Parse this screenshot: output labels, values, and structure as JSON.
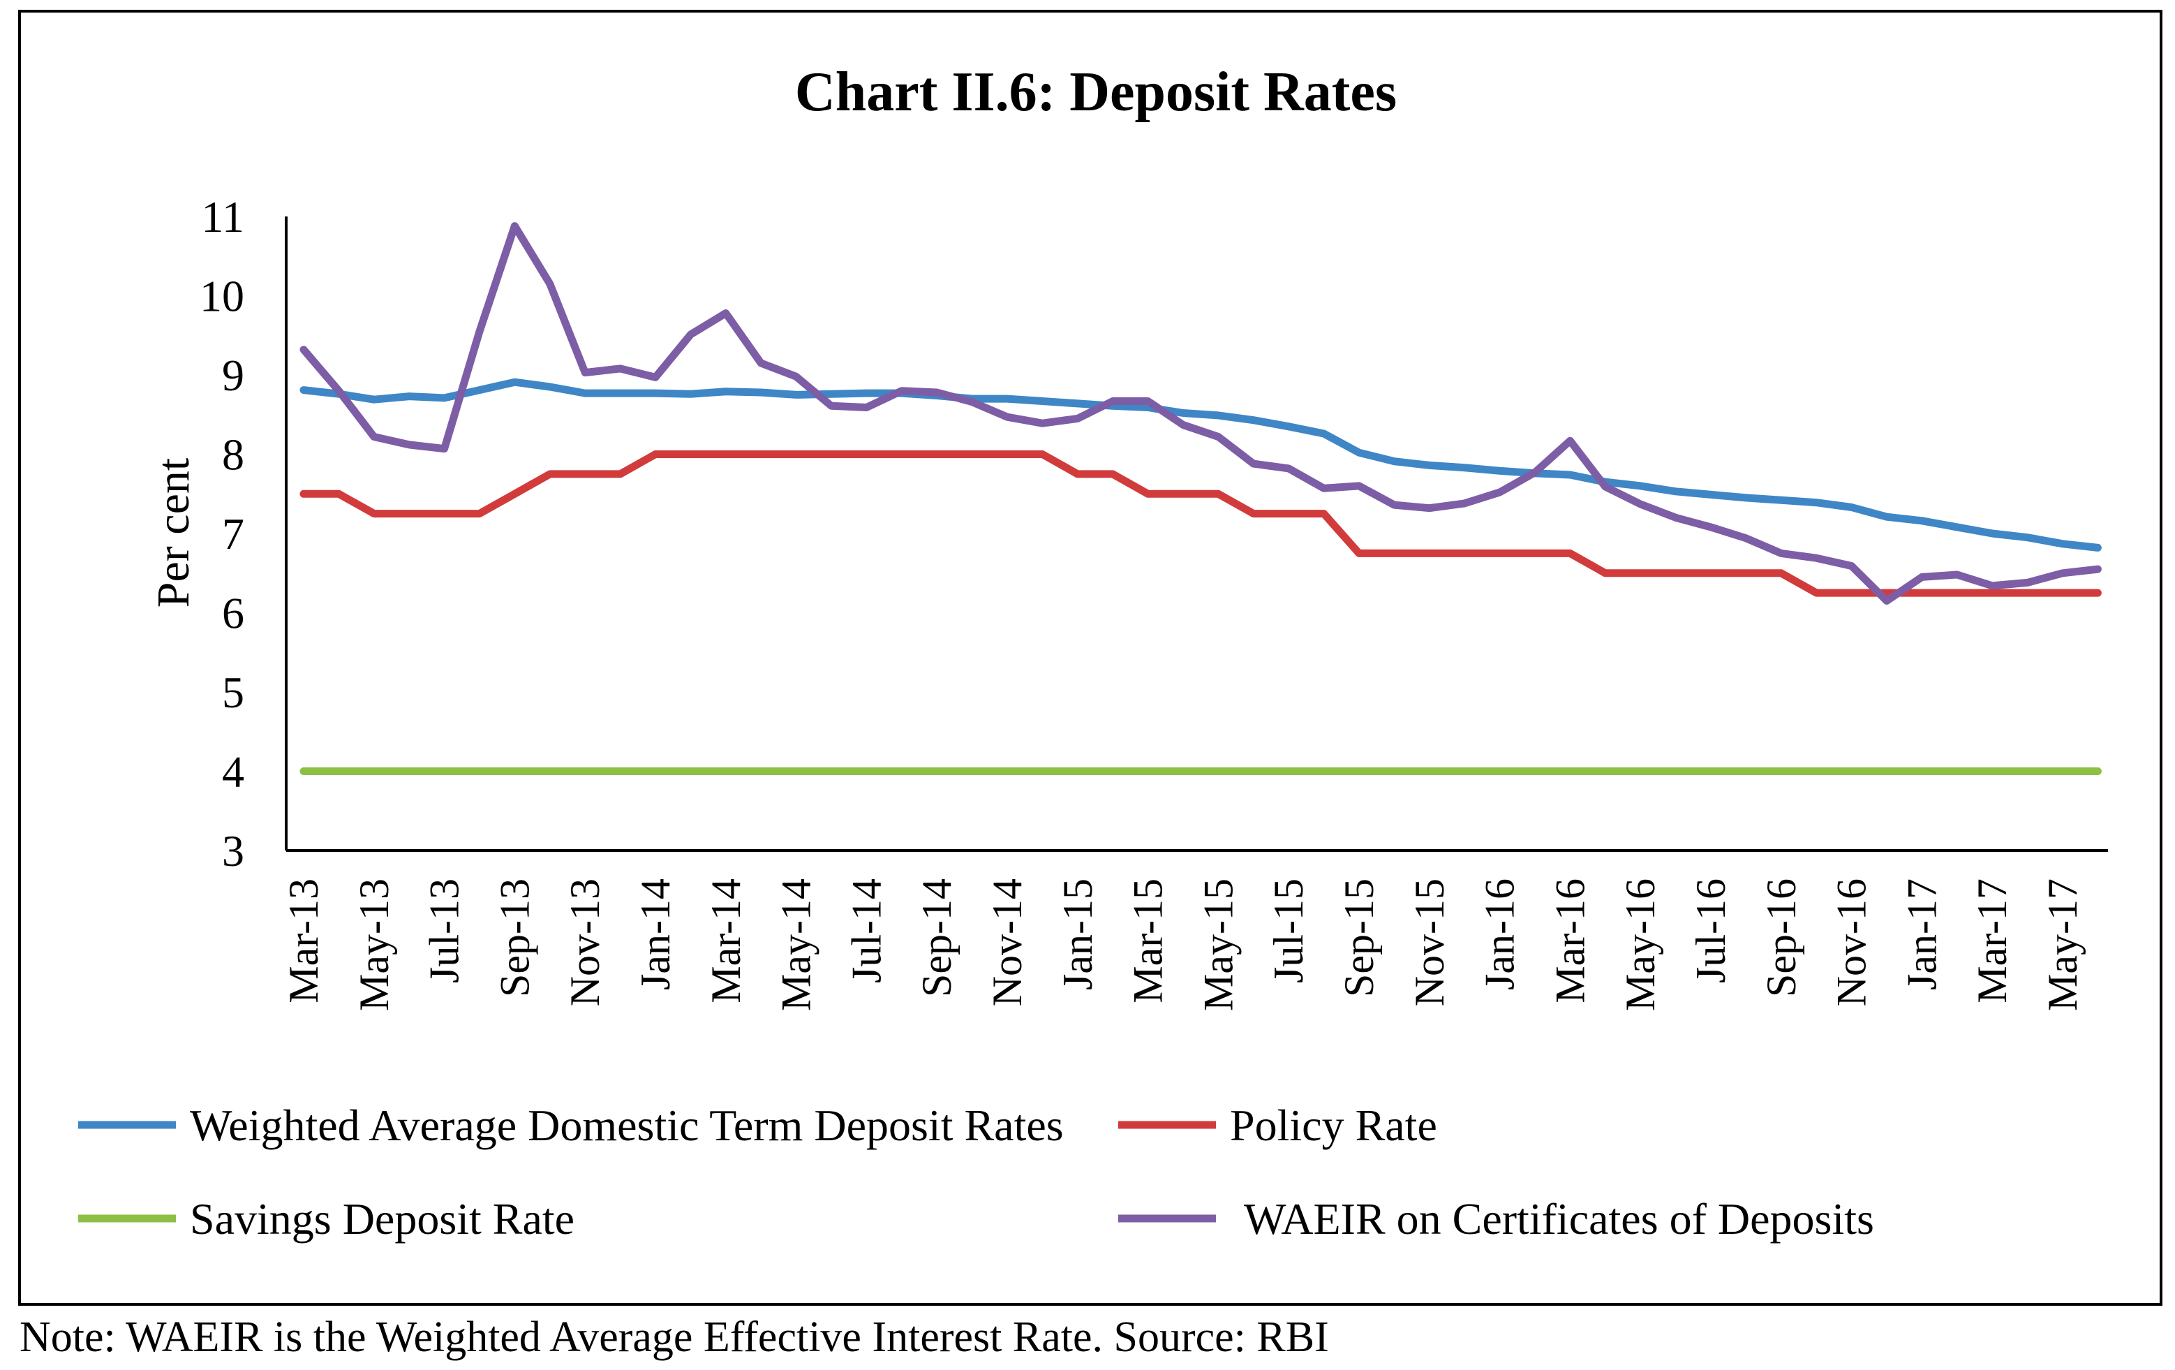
{
  "chart_data": {
    "type": "line",
    "title": "Chart II.6: Deposit Rates",
    "ylabel": "Per cent",
    "ylim": [
      3,
      11
    ],
    "yticks": [
      3,
      4,
      5,
      6,
      7,
      8,
      9,
      10,
      11
    ],
    "x": [
      "Mar-13",
      "Apr-13",
      "May-13",
      "Jun-13",
      "Jul-13",
      "Aug-13",
      "Sep-13",
      "Oct-13",
      "Nov-13",
      "Dec-13",
      "Jan-14",
      "Feb-14",
      "Mar-14",
      "Apr-14",
      "May-14",
      "Jun-14",
      "Jul-14",
      "Aug-14",
      "Sep-14",
      "Oct-14",
      "Nov-14",
      "Dec-14",
      "Jan-15",
      "Feb-15",
      "Mar-15",
      "Apr-15",
      "May-15",
      "Jun-15",
      "Jul-15",
      "Aug-15",
      "Sep-15",
      "Oct-15",
      "Nov-15",
      "Dec-15",
      "Jan-16",
      "Feb-16",
      "Mar-16",
      "Apr-16",
      "May-16",
      "Jun-16",
      "Jul-16",
      "Aug-16",
      "Sep-16",
      "Oct-16",
      "Nov-16",
      "Dec-16",
      "Jan-17",
      "Feb-17",
      "Mar-17",
      "Apr-17",
      "May-17",
      "Jun-17"
    ],
    "xticklabels": [
      "Mar-13",
      "May-13",
      "Jul-13",
      "Sep-13",
      "Nov-13",
      "Jan-14",
      "Mar-14",
      "May-14",
      "Jul-14",
      "Sep-14",
      "Nov-14",
      "Jan-15",
      "Mar-15",
      "May-15",
      "Jul-15",
      "Sep-15",
      "Nov-15",
      "Jan-16",
      "Mar-16",
      "May-16",
      "Jul-16",
      "Sep-16",
      "Nov-16",
      "Jan-17",
      "Mar-17",
      "May-17"
    ],
    "series": [
      {
        "name": "Weighted Average Domestic Term Deposit Rates",
        "color": "#3f86c6",
        "values": [
          8.81,
          8.76,
          8.69,
          8.73,
          8.71,
          8.81,
          8.91,
          8.85,
          8.77,
          8.77,
          8.77,
          8.76,
          8.79,
          8.78,
          8.75,
          8.76,
          8.77,
          8.77,
          8.74,
          8.7,
          8.7,
          8.67,
          8.64,
          8.61,
          8.59,
          8.52,
          8.49,
          8.43,
          8.35,
          8.26,
          8.02,
          7.91,
          7.86,
          7.83,
          7.79,
          7.76,
          7.74,
          7.65,
          7.6,
          7.53,
          7.49,
          7.45,
          7.42,
          7.39,
          7.33,
          7.21,
          7.16,
          7.08,
          7.0,
          6.95,
          6.87,
          6.82
        ]
      },
      {
        "name": "Policy Rate",
        "color": "#d23b3b",
        "values": [
          7.5,
          7.5,
          7.25,
          7.25,
          7.25,
          7.25,
          7.5,
          7.75,
          7.75,
          7.75,
          8.0,
          8.0,
          8.0,
          8.0,
          8.0,
          8.0,
          8.0,
          8.0,
          8.0,
          8.0,
          8.0,
          8.0,
          7.75,
          7.75,
          7.5,
          7.5,
          7.5,
          7.25,
          7.25,
          7.25,
          6.75,
          6.75,
          6.75,
          6.75,
          6.75,
          6.75,
          6.75,
          6.5,
          6.5,
          6.5,
          6.5,
          6.5,
          6.5,
          6.25,
          6.25,
          6.25,
          6.25,
          6.25,
          6.25,
          6.25,
          6.25,
          6.25
        ]
      },
      {
        "name": "Savings Deposit Rate",
        "color": "#8cbf44",
        "values": [
          4,
          4,
          4,
          4,
          4,
          4,
          4,
          4,
          4,
          4,
          4,
          4,
          4,
          4,
          4,
          4,
          4,
          4,
          4,
          4,
          4,
          4,
          4,
          4,
          4,
          4,
          4,
          4,
          4,
          4,
          4,
          4,
          4,
          4,
          4,
          4,
          4,
          4,
          4,
          4,
          4,
          4,
          4,
          4,
          4,
          4,
          4,
          4,
          4,
          4,
          4,
          4
        ]
      },
      {
        "name": "WAEIR on Certificates of Deposits",
        "color": "#7d5ea6",
        "values": [
          9.32,
          8.8,
          8.22,
          8.12,
          8.07,
          9.55,
          10.88,
          10.15,
          9.03,
          9.08,
          8.97,
          9.51,
          9.78,
          9.15,
          8.98,
          8.61,
          8.59,
          8.8,
          8.78,
          8.66,
          8.47,
          8.39,
          8.45,
          8.67,
          8.67,
          8.37,
          8.22,
          7.88,
          7.82,
          7.57,
          7.6,
          7.36,
          7.32,
          7.38,
          7.52,
          7.77,
          8.17,
          7.59,
          7.37,
          7.2,
          7.08,
          6.94,
          6.75,
          6.69,
          6.59,
          6.15,
          6.45,
          6.48,
          6.34,
          6.38,
          6.5,
          6.55
        ]
      }
    ]
  },
  "legend": [
    {
      "label": "Weighted Average Domestic Term Deposit Rates",
      "color": "#3f86c6"
    },
    {
      "label": "Policy Rate",
      "color": "#d23b3b"
    },
    {
      "label": "Savings Deposit Rate",
      "color": "#8cbf44"
    },
    {
      "label": "WAEIR on Certificates of Deposits",
      "color": "#7d5ea6"
    }
  ],
  "note": "Note: WAEIR is the Weighted Average Effective Interest Rate. Source: RBI"
}
